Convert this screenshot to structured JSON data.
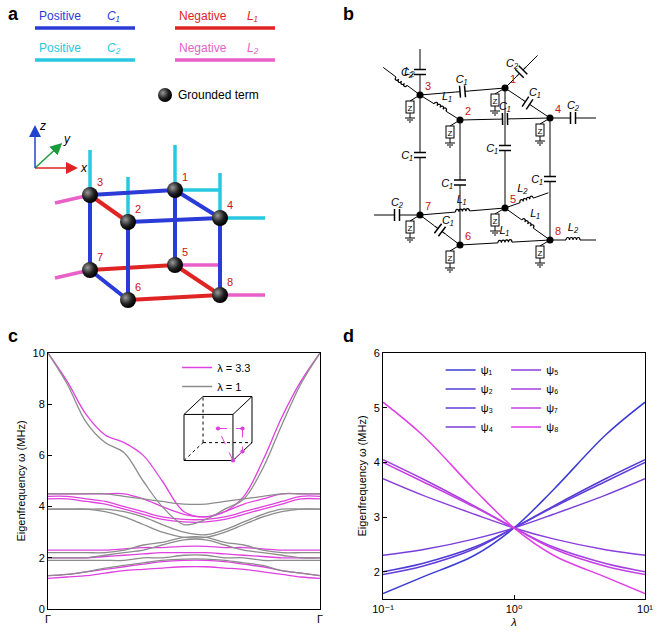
{
  "panel_labels": [
    "a",
    "b",
    "c",
    "d"
  ],
  "lattice_diagram": {
    "legend": [
      {
        "sign": "Positive",
        "component": "C₁",
        "color": "#2b3bd8"
      },
      {
        "sign": "Negative",
        "component": "L₁",
        "color": "#e02424"
      },
      {
        "sign": "Positive",
        "component": "C₂",
        "color": "#28c8e0"
      },
      {
        "sign": "Negative",
        "component": "L₂",
        "color": "#e860c8"
      }
    ],
    "grounded_label": "Grounded term",
    "axes": [
      "x",
      "y",
      "z"
    ],
    "nodes": [
      "1",
      "2",
      "3",
      "4",
      "5",
      "6",
      "7",
      "8"
    ]
  },
  "circuit_diagram": {
    "nodes": [
      "1",
      "2",
      "3",
      "4",
      "5",
      "6",
      "7",
      "8"
    ],
    "edges": [
      [
        3,
        1,
        "C₁"
      ],
      [
        3,
        2,
        "L₁"
      ],
      [
        2,
        4,
        "C₁"
      ],
      [
        1,
        4,
        "C₁"
      ],
      [
        3,
        7,
        "C₁"
      ],
      [
        1,
        5,
        "C₁"
      ],
      [
        2,
        6,
        "C₁"
      ],
      [
        4,
        8,
        "C₁"
      ],
      [
        7,
        5,
        "L₁"
      ],
      [
        7,
        6,
        "C₁"
      ],
      [
        6,
        8,
        "L₁"
      ],
      [
        5,
        8,
        "L₁"
      ]
    ],
    "stubs": [
      [
        3,
        "C₂"
      ],
      [
        1,
        "C₂"
      ],
      [
        3,
        "L₂"
      ],
      [
        4,
        "C₂"
      ],
      [
        7,
        "C₂"
      ],
      [
        5,
        "L₂"
      ],
      [
        8,
        "L₂"
      ]
    ],
    "ground_label": "Z"
  },
  "chart_data": [
    {
      "type": "line",
      "x": [
        0,
        0.07,
        0.14,
        0.21,
        0.28,
        0.35,
        0.42,
        0.5,
        0.58,
        0.65,
        0.72,
        0.79,
        0.86,
        0.93,
        1.0
      ],
      "xlim": [
        0,
        1
      ],
      "xticks": [
        {
          "value": 0,
          "label": "Γ"
        },
        {
          "value": 1,
          "label": "Γ"
        }
      ],
      "ylim": [
        0,
        10
      ],
      "yticks": [
        0,
        2,
        4,
        6,
        8,
        10
      ],
      "y_label": "Eigenfrequency ω (MHz)",
      "grid": false,
      "legend": "top",
      "series": [
        {
          "name": "λ = 3.3",
          "color": "#e040e0",
          "values": [
            [
              1.2,
              1.25,
              1.3,
              1.4,
              1.5,
              1.55,
              1.6,
              1.65,
              1.65,
              1.6,
              1.55,
              1.45,
              1.35,
              1.25,
              1.2
            ],
            [
              1.3,
              1.35,
              1.45,
              1.55,
              1.65,
              1.75,
              1.85,
              1.9,
              1.9,
              1.85,
              1.75,
              1.65,
              1.5,
              1.4,
              1.3
            ],
            [
              2.0,
              2.0,
              2.0,
              2.05,
              2.1,
              2.15,
              2.2,
              2.2,
              2.2,
              2.15,
              2.1,
              2.05,
              2.0,
              2.0,
              2.0
            ],
            [
              2.3,
              2.3,
              2.3,
              2.3,
              2.35,
              2.4,
              2.4,
              2.45,
              2.45,
              2.4,
              2.4,
              2.35,
              2.3,
              2.3,
              2.3
            ],
            [
              4.3,
              4.3,
              4.2,
              4.1,
              3.9,
              3.7,
              3.5,
              3.4,
              3.4,
              3.5,
              3.7,
              3.9,
              4.1,
              4.3,
              4.3
            ],
            [
              4.4,
              4.4,
              4.3,
              4.2,
              4.0,
              3.8,
              3.6,
              3.5,
              3.5,
              3.6,
              3.8,
              4.0,
              4.2,
              4.4,
              4.4
            ],
            [
              4.5,
              4.5,
              4.5,
              4.5,
              4.5,
              4.3,
              4.0,
              3.7,
              3.6,
              3.8,
              4.1,
              4.3,
              4.5,
              4.5,
              4.5
            ],
            [
              10,
              8.9,
              7.6,
              6.8,
              6.5,
              6.0,
              5.0,
              3.8,
              3.6,
              3.8,
              4.4,
              5.8,
              7.5,
              8.9,
              10
            ]
          ]
        },
        {
          "name": "λ = 1",
          "color": "#8c8c8c",
          "values": [
            [
              1.3,
              1.35,
              1.45,
              1.6,
              1.7,
              1.8,
              1.9,
              1.95,
              1.95,
              1.9,
              1.8,
              1.7,
              1.5,
              1.4,
              1.3
            ],
            [
              1.9,
              1.9,
              1.9,
              1.9,
              1.9,
              2.0,
              2.0,
              2.1,
              2.1,
              2.0,
              2.0,
              1.9,
              1.9,
              1.9,
              1.9
            ],
            [
              2.0,
              2.0,
              2.0,
              2.1,
              2.2,
              2.3,
              2.5,
              2.7,
              2.7,
              2.5,
              2.3,
              2.2,
              2.1,
              2.0,
              2.0
            ],
            [
              2.2,
              2.2,
              2.2,
              2.2,
              2.3,
              2.5,
              2.6,
              2.8,
              2.8,
              2.6,
              2.5,
              2.3,
              2.2,
              2.2,
              2.2
            ],
            [
              3.9,
              3.9,
              3.9,
              3.8,
              3.6,
              3.3,
              3.0,
              2.8,
              2.8,
              3.0,
              3.3,
              3.6,
              3.8,
              3.9,
              3.9
            ],
            [
              3.9,
              3.9,
              3.9,
              3.9,
              3.8,
              3.6,
              3.3,
              3.0,
              2.9,
              3.1,
              3.4,
              3.7,
              3.9,
              3.9,
              3.9
            ],
            [
              4.5,
              4.5,
              4.5,
              4.5,
              4.4,
              4.3,
              4.2,
              4.1,
              4.1,
              4.2,
              4.3,
              4.4,
              4.5,
              4.5,
              4.5
            ],
            [
              10,
              8.8,
              7.3,
              6.5,
              6.1,
              5.0,
              4.0,
              3.3,
              3.5,
              3.9,
              4.3,
              5.5,
              7.2,
              8.8,
              10
            ]
          ]
        }
      ]
    },
    {
      "type": "line",
      "log": "x",
      "x": [
        0.1,
        0.2,
        0.5,
        1,
        2,
        5,
        10
      ],
      "xlim": [
        0.1,
        10
      ],
      "xticks": [
        {
          "value": 0.1,
          "label": "10⁻¹"
        },
        {
          "value": 1,
          "label": "10⁰"
        },
        {
          "value": 10,
          "label": "10¹"
        }
      ],
      "ylim": [
        1.5,
        6
      ],
      "yticks": [
        2,
        3,
        4,
        5,
        6
      ],
      "x_label": "λ",
      "y_label": "Eigenfrequency ω (MHz)",
      "grid": false,
      "legend": "top",
      "series": [
        {
          "name": "ψ₁",
          "color": "#3b3bd6",
          "values": [
            1.6,
            1.9,
            2.3,
            2.8,
            3.5,
            4.5,
            5.1
          ]
        },
        {
          "name": "ψ₂",
          "color": "#4f3cd8",
          "values": [
            2.0,
            2.15,
            2.45,
            2.8,
            3.2,
            3.7,
            4.05
          ]
        },
        {
          "name": "ψ₃",
          "color": "#633dda",
          "values": [
            1.95,
            2.1,
            2.42,
            2.8,
            3.18,
            3.65,
            4.0
          ]
        },
        {
          "name": "ψ₄",
          "color": "#773edc",
          "values": [
            2.3,
            2.4,
            2.6,
            2.8,
            3.05,
            3.4,
            3.7
          ]
        },
        {
          "name": "ψ₅",
          "color": "#8c3fde",
          "values": [
            3.7,
            3.4,
            3.05,
            2.8,
            2.6,
            2.4,
            2.3
          ]
        },
        {
          "name": "ψ₆",
          "color": "#a640e0",
          "values": [
            4.05,
            3.7,
            3.2,
            2.8,
            2.45,
            2.15,
            2.0
          ]
        },
        {
          "name": "ψ₇",
          "color": "#c540e4",
          "values": [
            4.0,
            3.65,
            3.18,
            2.8,
            2.42,
            2.1,
            1.95
          ]
        },
        {
          "name": "ψ₈",
          "color": "#e040e6",
          "values": [
            5.1,
            4.5,
            3.5,
            2.8,
            2.3,
            1.9,
            1.6
          ]
        }
      ]
    }
  ]
}
